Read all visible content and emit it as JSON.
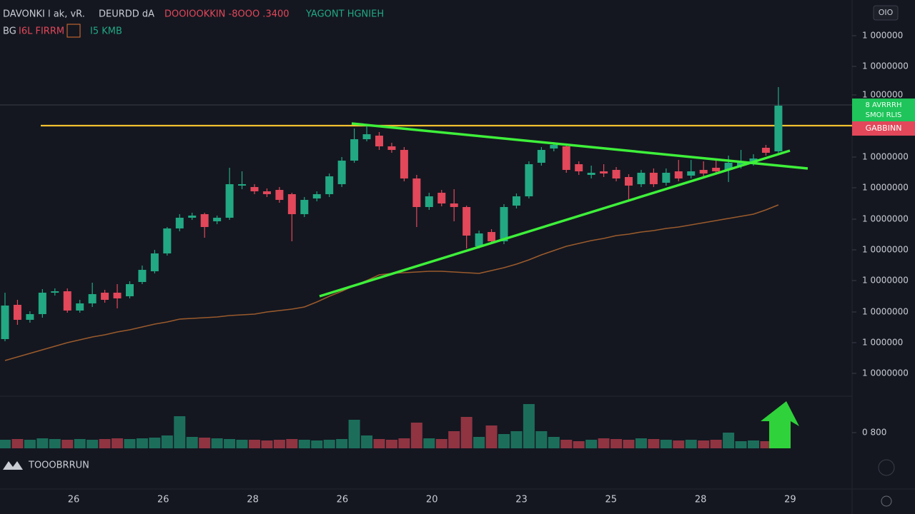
{
  "header": {
    "symbol": "DAVONKI l ak, vR.",
    "exchange": "DEURDD dA",
    "ohlc": "DOOIOOKKIN -8OOO .3400",
    "change": "YAGONT HGNIEH",
    "row2_label": "BG",
    "row2_red": "I6L FIRRM",
    "row2_green": "I5 KMB",
    "corner_button": "OIO"
  },
  "logo": "TOOOBRRUN",
  "badges": {
    "green": [
      "8 AVRRRH",
      "SMOI RLIS"
    ],
    "red": "GABBINN"
  },
  "chart_data": {
    "type": "candlestick",
    "categories": [
      "26",
      "26",
      "28",
      "26",
      "20",
      "23",
      "25",
      "28",
      "29"
    ],
    "ylim": [
      0,
      555
    ],
    "yticks": [
      {
        "value": 505,
        "label": "1 000000"
      },
      {
        "value": 462,
        "label": "1 0000000"
      },
      {
        "value": 422,
        "label": "1 000000"
      },
      {
        "value": 335,
        "label": "1 0000000"
      },
      {
        "value": 292,
        "label": "1 0000000"
      },
      {
        "value": 248,
        "label": "1 0000000"
      },
      {
        "value": 205,
        "label": "1 0000000"
      },
      {
        "value": 162,
        "label": "1 0000000"
      },
      {
        "value": 118,
        "label": "1 0000000"
      },
      {
        "value": 75,
        "label": "1 000000"
      },
      {
        "value": 32,
        "label": "1 0000000"
      }
    ],
    "price_level": 379,
    "up_color": "#22a883",
    "down_color": "#e2475a",
    "level_color": "#f2c230",
    "ma_color": "#9a5a2c",
    "open": [
      80,
      128,
      107,
      115,
      145,
      147,
      120,
      130,
      145,
      145,
      140,
      160,
      175,
      200,
      235,
      250,
      255,
      245,
      250,
      295,
      293,
      287,
      289,
      283,
      255,
      277,
      283,
      297,
      330,
      360,
      365,
      350,
      345,
      305,
      265,
      285,
      270,
      265,
      210,
      230,
      217,
      267,
      280,
      327,
      347,
      350,
      325,
      310,
      315,
      317,
      307,
      297,
      313,
      299,
      315,
      309,
      317,
      320,
      317,
      323,
      327,
      348,
      343
    ],
    "high": [
      145,
      135,
      119,
      150,
      151,
      151,
      135,
      159,
      149,
      157,
      161,
      183,
      205,
      237,
      255,
      257,
      257,
      253,
      320,
      315,
      297,
      291,
      293,
      285,
      279,
      287,
      312,
      335,
      375,
      380,
      370,
      355,
      349,
      310,
      285,
      289,
      290,
      267,
      232,
      234,
      269,
      284,
      329,
      349,
      356,
      354,
      329,
      323,
      325,
      321,
      311,
      317,
      319,
      319,
      331,
      331,
      329,
      330,
      337,
      345,
      339,
      352,
      433
    ],
    "low": [
      77,
      100,
      103,
      110,
      141,
      117,
      117,
      125,
      131,
      123,
      137,
      157,
      172,
      197,
      231,
      247,
      222,
      241,
      247,
      290,
      283,
      279,
      271,
      217,
      251,
      273,
      279,
      293,
      327,
      357,
      345,
      341,
      301,
      237,
      261,
      266,
      245,
      207,
      207,
      213,
      213,
      263,
      277,
      323,
      343,
      313,
      310,
      305,
      307,
      301,
      275,
      293,
      293,
      295,
      301,
      305,
      308,
      311,
      300,
      319,
      323,
      337,
      341
    ],
    "close": [
      127,
      107,
      115,
      145,
      147,
      120,
      130,
      143,
      135,
      137,
      157,
      177,
      200,
      235,
      250,
      253,
      237,
      250,
      297,
      297,
      287,
      283,
      275,
      255,
      275,
      283,
      308,
      330,
      360,
      367,
      350,
      345,
      305,
      265,
      280,
      270,
      265,
      225,
      228,
      217,
      265,
      280,
      325,
      345,
      352,
      317,
      315,
      313,
      312,
      305,
      295,
      313,
      297,
      313,
      305,
      315,
      312,
      315,
      327,
      327,
      333,
      341,
      407
    ],
    "volume": [
      12,
      13,
      12,
      14,
      13,
      12,
      13,
      12,
      13,
      14,
      13,
      14,
      15,
      18,
      45,
      16,
      15,
      14,
      13,
      12,
      12,
      11,
      12,
      13,
      12,
      11,
      12,
      13,
      40,
      18,
      13,
      12,
      14,
      36,
      14,
      13,
      24,
      44,
      16,
      32,
      20,
      24,
      62,
      24,
      16,
      12,
      10,
      12,
      14,
      13,
      12,
      14,
      13,
      12,
      11,
      12,
      11,
      12,
      22,
      10,
      11,
      10,
      12
    ],
    "volume_ylim": [
      0,
      70
    ],
    "volume_ticks": [
      {
        "value": 22,
        "label": "0 800"
      }
    ],
    "ma": [
      50,
      55,
      60,
      65,
      70,
      75,
      79,
      83,
      86,
      90,
      93,
      97,
      101,
      104,
      108,
      109,
      110,
      111,
      113,
      114,
      115,
      118,
      120,
      122,
      125,
      132,
      140,
      147,
      155,
      162,
      170,
      172,
      173,
      174,
      175,
      175,
      174,
      173,
      172,
      176,
      180,
      185,
      191,
      198,
      204,
      210,
      214,
      218,
      221,
      225,
      227,
      230,
      232,
      235,
      237,
      240,
      243,
      246,
      249,
      252,
      255,
      261,
      268
    ]
  }
}
